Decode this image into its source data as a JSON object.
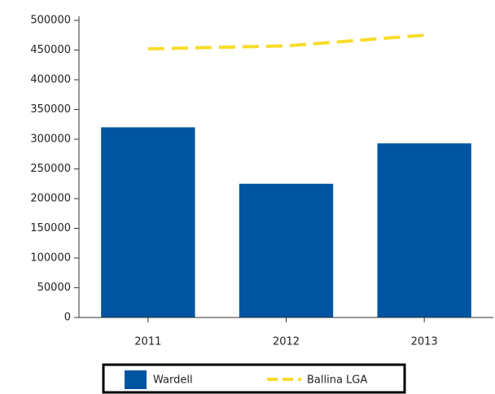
{
  "chart_data": {
    "type": "bar",
    "categories": [
      "2011",
      "2012",
      "2013"
    ],
    "series": [
      {
        "name": "Wardell",
        "type": "bar",
        "color": "#0055a0",
        "values": [
          320000,
          225000,
          293000
        ]
      },
      {
        "name": "Ballina LGA",
        "type": "line",
        "color": "#f7dc2a",
        "values": [
          452000,
          457000,
          475000
        ]
      }
    ],
    "ylim": [
      0,
      500000
    ],
    "yticks": [
      0,
      50000,
      100000,
      150000,
      200000,
      250000,
      300000,
      350000,
      400000,
      450000,
      500000
    ],
    "legend": "bottom"
  }
}
